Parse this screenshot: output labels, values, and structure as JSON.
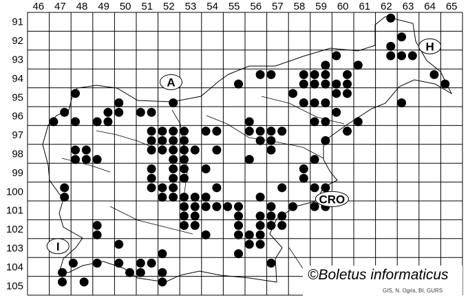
{
  "map": {
    "columns": [
      "46",
      "47",
      "48",
      "49",
      "50",
      "51",
      "52",
      "53",
      "54",
      "55",
      "56",
      "57",
      "58",
      "59",
      "60",
      "61",
      "62",
      "63",
      "64",
      "65"
    ],
    "rows": [
      "91",
      "92",
      "93",
      "94",
      "95",
      "96",
      "97",
      "98",
      "99",
      "100",
      "101",
      "102",
      "103",
      "104",
      "105"
    ],
    "country_labels": [
      {
        "text": "A",
        "col": 52.6,
        "row": 94.7
      },
      {
        "text": "H",
        "col": 64.5,
        "row": 92.8
      },
      {
        "text": "CRO",
        "col": 60.0,
        "row": 100.9
      },
      {
        "text": "I",
        "col": 47.4,
        "row": 103.4
      }
    ],
    "dot_color": "#000000",
    "dots": [
      [
        62.7,
        91.3
      ],
      [
        63.2,
        92.3
      ],
      [
        62.7,
        92.8
      ],
      [
        62.7,
        93.3
      ],
      [
        63.2,
        93.3
      ],
      [
        63.7,
        93.3
      ],
      [
        60.2,
        93.3
      ],
      [
        61.2,
        93.8
      ],
      [
        59.7,
        93.8
      ],
      [
        64.7,
        94.3
      ],
      [
        56.7,
        94.3
      ],
      [
        57.2,
        94.3
      ],
      [
        58.7,
        94.3
      ],
      [
        59.2,
        94.3
      ],
      [
        59.7,
        94.3
      ],
      [
        60.7,
        94.3
      ],
      [
        65.2,
        94.8
      ],
      [
        55.7,
        94.8
      ],
      [
        58.7,
        94.8
      ],
      [
        59.2,
        94.8
      ],
      [
        59.7,
        94.8
      ],
      [
        60.2,
        94.8
      ],
      [
        60.7,
        94.8
      ],
      [
        48.2,
        95.3
      ],
      [
        58.2,
        95.3
      ],
      [
        60.2,
        95.3
      ],
      [
        60.7,
        95.3
      ],
      [
        50.2,
        95.8
      ],
      [
        52.7,
        95.8
      ],
      [
        58.7,
        95.8
      ],
      [
        59.2,
        95.8
      ],
      [
        59.7,
        95.8
      ],
      [
        63.2,
        95.8
      ],
      [
        47.7,
        96.3
      ],
      [
        49.7,
        96.3
      ],
      [
        50.2,
        96.3
      ],
      [
        51.2,
        96.3
      ],
      [
        51.7,
        96.3
      ],
      [
        60.2,
        96.3
      ],
      [
        47.2,
        96.8
      ],
      [
        48.2,
        96.8
      ],
      [
        49.2,
        96.8
      ],
      [
        49.7,
        96.8
      ],
      [
        56.2,
        96.8
      ],
      [
        59.2,
        96.8
      ],
      [
        59.7,
        96.8
      ],
      [
        61.2,
        96.8
      ],
      [
        51.7,
        97.3
      ],
      [
        52.2,
        97.3
      ],
      [
        52.7,
        97.3
      ],
      [
        53.2,
        97.3
      ],
      [
        54.2,
        97.3
      ],
      [
        54.7,
        97.3
      ],
      [
        56.2,
        97.3
      ],
      [
        56.7,
        97.3
      ],
      [
        57.2,
        97.3
      ],
      [
        57.7,
        97.3
      ],
      [
        60.7,
        97.3
      ],
      [
        51.7,
        97.8
      ],
      [
        52.2,
        97.8
      ],
      [
        52.7,
        97.8
      ],
      [
        53.2,
        97.8
      ],
      [
        56.7,
        97.8
      ],
      [
        57.2,
        97.8
      ],
      [
        59.7,
        97.8
      ],
      [
        48.2,
        98.3
      ],
      [
        48.7,
        98.3
      ],
      [
        51.7,
        98.3
      ],
      [
        52.2,
        98.3
      ],
      [
        52.7,
        98.3
      ],
      [
        53.2,
        98.3
      ],
      [
        53.7,
        98.3
      ],
      [
        54.7,
        98.3
      ],
      [
        57.2,
        98.3
      ],
      [
        48.2,
        98.8
      ],
      [
        48.7,
        98.8
      ],
      [
        49.2,
        98.8
      ],
      [
        52.7,
        98.8
      ],
      [
        53.2,
        98.8
      ],
      [
        56.2,
        98.8
      ],
      [
        59.2,
        98.8
      ],
      [
        51.7,
        99.3
      ],
      [
        52.7,
        99.3
      ],
      [
        53.2,
        99.3
      ],
      [
        54.2,
        99.3
      ],
      [
        58.7,
        99.3
      ],
      [
        51.7,
        99.8
      ],
      [
        52.7,
        99.8
      ],
      [
        53.2,
        99.8
      ],
      [
        58.7,
        99.8
      ],
      [
        47.7,
        100.3
      ],
      [
        51.7,
        100.3
      ],
      [
        52.2,
        100.3
      ],
      [
        52.7,
        100.3
      ],
      [
        54.7,
        100.3
      ],
      [
        57.7,
        100.3
      ],
      [
        59.2,
        100.3
      ],
      [
        59.7,
        100.3
      ],
      [
        47.7,
        100.8
      ],
      [
        52.2,
        100.8
      ],
      [
        52.7,
        100.8
      ],
      [
        53.2,
        100.8
      ],
      [
        53.7,
        100.8
      ],
      [
        54.2,
        100.8
      ],
      [
        56.7,
        100.8
      ],
      [
        53.2,
        101.3
      ],
      [
        53.7,
        101.3
      ],
      [
        54.2,
        101.3
      ],
      [
        54.7,
        101.3
      ],
      [
        55.2,
        101.3
      ],
      [
        55.7,
        101.3
      ],
      [
        57.2,
        101.3
      ],
      [
        58.2,
        101.3
      ],
      [
        59.2,
        101.3
      ],
      [
        59.7,
        101.3
      ],
      [
        53.2,
        101.8
      ],
      [
        53.7,
        101.8
      ],
      [
        55.7,
        101.8
      ],
      [
        56.7,
        101.8
      ],
      [
        57.2,
        101.8
      ],
      [
        57.7,
        101.8
      ],
      [
        49.2,
        102.3
      ],
      [
        53.2,
        102.3
      ],
      [
        53.7,
        102.3
      ],
      [
        55.7,
        102.3
      ],
      [
        56.7,
        102.3
      ],
      [
        57.2,
        102.3
      ],
      [
        57.7,
        102.3
      ],
      [
        49.2,
        102.8
      ],
      [
        54.2,
        102.8
      ],
      [
        55.7,
        102.8
      ],
      [
        56.2,
        102.8
      ],
      [
        56.7,
        102.8
      ],
      [
        50.2,
        103.3
      ],
      [
        56.2,
        103.3
      ],
      [
        56.7,
        103.3
      ],
      [
        52.2,
        103.8
      ],
      [
        55.7,
        103.8
      ],
      [
        48.1,
        104.3
      ],
      [
        49.2,
        104.3
      ],
      [
        50.2,
        104.3
      ],
      [
        51.2,
        104.3
      ],
      [
        51.7,
        104.3
      ],
      [
        57.2,
        104.3
      ],
      [
        47.6,
        104.8
      ],
      [
        50.7,
        104.8
      ],
      [
        51.2,
        104.8
      ],
      [
        52.2,
        104.8
      ],
      [
        47.6,
        105.3
      ],
      [
        48.6,
        105.3
      ],
      [
        52.2,
        105.3
      ]
    ]
  },
  "watermark": "©Boletus informaticus",
  "credit": "GIS, N. Ogris, BI, GURS"
}
